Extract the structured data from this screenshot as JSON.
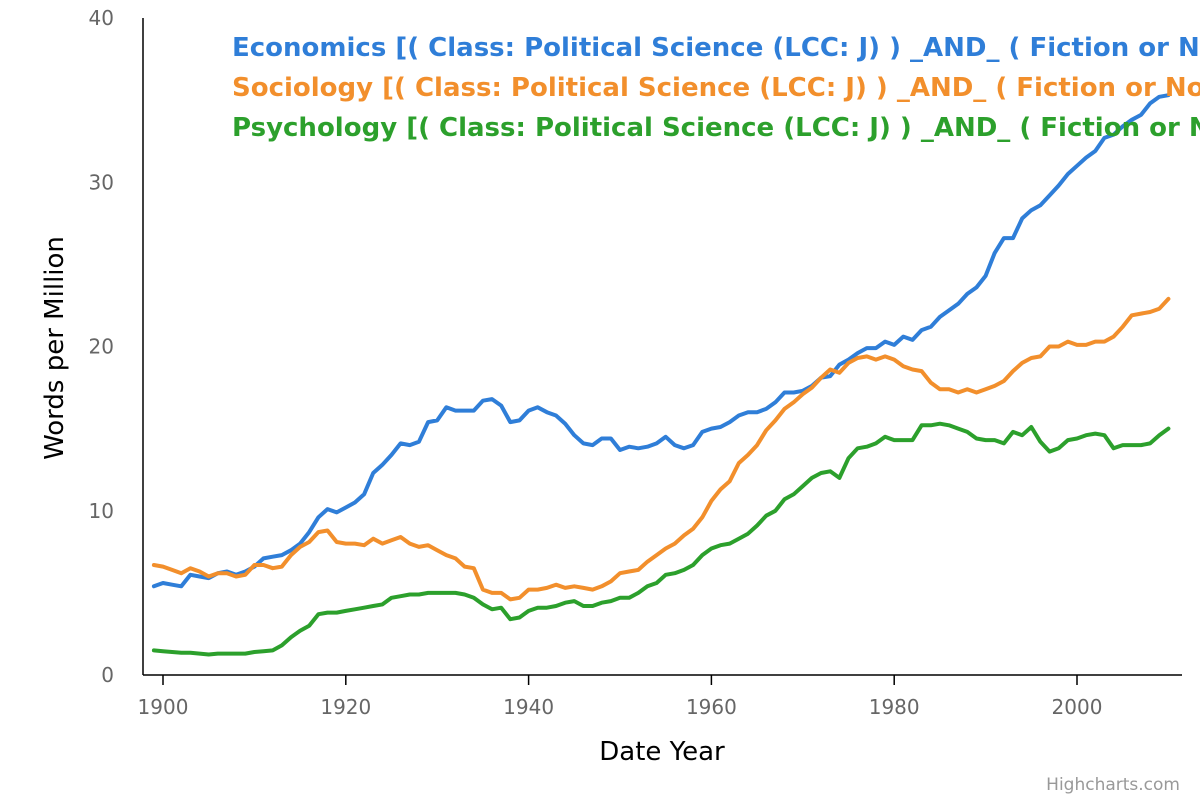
{
  "chart_data": {
    "type": "line",
    "title": "",
    "xlabel": "Date Year",
    "ylabel": "Words per Million",
    "xlim": [
      1899,
      2010
    ],
    "ylim": [
      0,
      40
    ],
    "x_ticks": [
      1900,
      1920,
      1940,
      1960,
      1980,
      2000
    ],
    "y_ticks": [
      0,
      10,
      20,
      30,
      40
    ],
    "grid": false,
    "legend_position": "top",
    "x": [
      1899,
      1900,
      1901,
      1902,
      1903,
      1904,
      1905,
      1906,
      1907,
      1908,
      1909,
      1910,
      1911,
      1912,
      1913,
      1914,
      1915,
      1916,
      1917,
      1918,
      1919,
      1920,
      1921,
      1922,
      1923,
      1924,
      1925,
      1926,
      1927,
      1928,
      1929,
      1930,
      1931,
      1932,
      1933,
      1934,
      1935,
      1936,
      1937,
      1938,
      1939,
      1940,
      1941,
      1942,
      1943,
      1944,
      1945,
      1946,
      1947,
      1948,
      1949,
      1950,
      1951,
      1952,
      1953,
      1954,
      1955,
      1956,
      1957,
      1958,
      1959,
      1960,
      1961,
      1962,
      1963,
      1964,
      1965,
      1966,
      1967,
      1968,
      1969,
      1970,
      1971,
      1972,
      1973,
      1974,
      1975,
      1976,
      1977,
      1978,
      1979,
      1980,
      1981,
      1982,
      1983,
      1984,
      1985,
      1986,
      1987,
      1988,
      1989,
      1990,
      1991,
      1992,
      1993,
      1994,
      1995,
      1996,
      1997,
      1998,
      1999,
      2000,
      2001,
      2002,
      2003,
      2004,
      2005,
      2006,
      2007,
      2008,
      2009,
      2010
    ],
    "series": [
      {
        "name": "Economics [( Class: Political Science (LCC: J) ) _AND_ ( Fiction or Not Fiction )]",
        "color": "#2f7ed8",
        "values": [
          5.4,
          5.6,
          5.5,
          5.4,
          6.1,
          6.0,
          5.9,
          6.2,
          6.3,
          6.1,
          6.3,
          6.6,
          7.1,
          7.2,
          7.3,
          7.6,
          8.0,
          8.7,
          9.6,
          10.1,
          9.9,
          10.2,
          10.5,
          11.0,
          12.3,
          12.8,
          13.4,
          14.1,
          14.0,
          14.2,
          15.4,
          15.5,
          16.3,
          16.1,
          16.1,
          16.1,
          16.7,
          16.8,
          16.4,
          15.4,
          15.5,
          16.1,
          16.3,
          16.0,
          15.8,
          15.3,
          14.6,
          14.1,
          14.0,
          14.4,
          14.4,
          13.7,
          13.9,
          13.8,
          13.9,
          14.1,
          14.5,
          14.0,
          13.8,
          14.0,
          14.8,
          15.0,
          15.1,
          15.4,
          15.8,
          16.0,
          16.0,
          16.2,
          16.6,
          17.2,
          17.2,
          17.3,
          17.6,
          18.1,
          18.2,
          18.9,
          19.2,
          19.6,
          19.9,
          19.9,
          20.3,
          20.1,
          20.6,
          20.4,
          21.0,
          21.2,
          21.8,
          22.2,
          22.6,
          23.2,
          23.6,
          24.3,
          25.7,
          26.6,
          26.6,
          27.8,
          28.3,
          28.6,
          29.2,
          29.8,
          30.5,
          31.0,
          31.5,
          31.9,
          32.7,
          32.9,
          33.4,
          33.8,
          34.1,
          34.8,
          35.2,
          35.3
        ]
      },
      {
        "name": "Sociology [( Class: Political Science (LCC: J) ) _AND_ ( Fiction or Not Fiction )]",
        "color": "#f28f2c",
        "values": [
          6.7,
          6.6,
          6.4,
          6.2,
          6.5,
          6.3,
          6.0,
          6.2,
          6.2,
          6.0,
          6.1,
          6.7,
          6.7,
          6.5,
          6.6,
          7.3,
          7.8,
          8.1,
          8.7,
          8.8,
          8.1,
          8.0,
          8.0,
          7.9,
          8.3,
          8.0,
          8.2,
          8.4,
          8.0,
          7.8,
          7.9,
          7.6,
          7.3,
          7.1,
          6.6,
          6.5,
          5.2,
          5.0,
          5.0,
          4.6,
          4.7,
          5.2,
          5.2,
          5.3,
          5.5,
          5.3,
          5.4,
          5.3,
          5.2,
          5.4,
          5.7,
          6.2,
          6.3,
          6.4,
          6.9,
          7.3,
          7.7,
          8.0,
          8.5,
          8.9,
          9.6,
          10.6,
          11.3,
          11.8,
          12.9,
          13.4,
          14.0,
          14.9,
          15.5,
          16.2,
          16.6,
          17.1,
          17.5,
          18.1,
          18.6,
          18.4,
          19.0,
          19.3,
          19.4,
          19.2,
          19.4,
          19.2,
          18.8,
          18.6,
          18.5,
          17.8,
          17.4,
          17.4,
          17.2,
          17.4,
          17.2,
          17.4,
          17.6,
          17.9,
          18.5,
          19.0,
          19.3,
          19.4,
          20.0,
          20.0,
          20.3,
          20.1,
          20.1,
          20.3,
          20.3,
          20.6,
          21.2,
          21.9,
          22.0,
          22.1,
          22.3,
          22.9
        ]
      },
      {
        "name": "Psychology [( Class: Political Science (LCC: J) ) _AND_ ( Fiction or Not Fiction )]",
        "color": "#2ca02c",
        "values": [
          1.5,
          1.45,
          1.4,
          1.35,
          1.35,
          1.3,
          1.25,
          1.3,
          1.3,
          1.3,
          1.3,
          1.4,
          1.45,
          1.5,
          1.8,
          2.3,
          2.7,
          3.0,
          3.7,
          3.8,
          3.8,
          3.9,
          4.0,
          4.1,
          4.2,
          4.3,
          4.7,
          4.8,
          4.9,
          4.9,
          5.0,
          5.0,
          5.0,
          5.0,
          4.9,
          4.7,
          4.3,
          4.0,
          4.1,
          3.4,
          3.5,
          3.9,
          4.1,
          4.1,
          4.2,
          4.4,
          4.5,
          4.2,
          4.2,
          4.4,
          4.5,
          4.7,
          4.7,
          5.0,
          5.4,
          5.6,
          6.1,
          6.2,
          6.4,
          6.7,
          7.3,
          7.7,
          7.9,
          8.0,
          8.3,
          8.6,
          9.1,
          9.7,
          10.0,
          10.7,
          11.0,
          11.5,
          12.0,
          12.3,
          12.4,
          12.0,
          13.2,
          13.8,
          13.9,
          14.1,
          14.5,
          14.3,
          14.3,
          14.3,
          15.2,
          15.2,
          15.3,
          15.2,
          15.0,
          14.8,
          14.4,
          14.3,
          14.3,
          14.1,
          14.8,
          14.6,
          15.1,
          14.2,
          13.6,
          13.8,
          14.3,
          14.4,
          14.6,
          14.7,
          14.6,
          13.8,
          14.0,
          14.0,
          14.0,
          14.1,
          14.6,
          15.0
        ]
      }
    ]
  },
  "legend_labels": [
    "Economics [( Class: Political Science (LCC: J) ) _AND_ ( Fiction or Not Fic",
    "Sociology [( Class: Political Science (LCC: J) ) _AND_ ( Fiction or Not Ficti",
    "Psychology [( Class: Political Science (LCC: J) ) _AND_ ( Fiction or Not Fic"
  ],
  "credits": "Highcharts.com",
  "colors": {
    "axis": "#000000",
    "tick_text": "#666666",
    "credits": "#999999"
  }
}
